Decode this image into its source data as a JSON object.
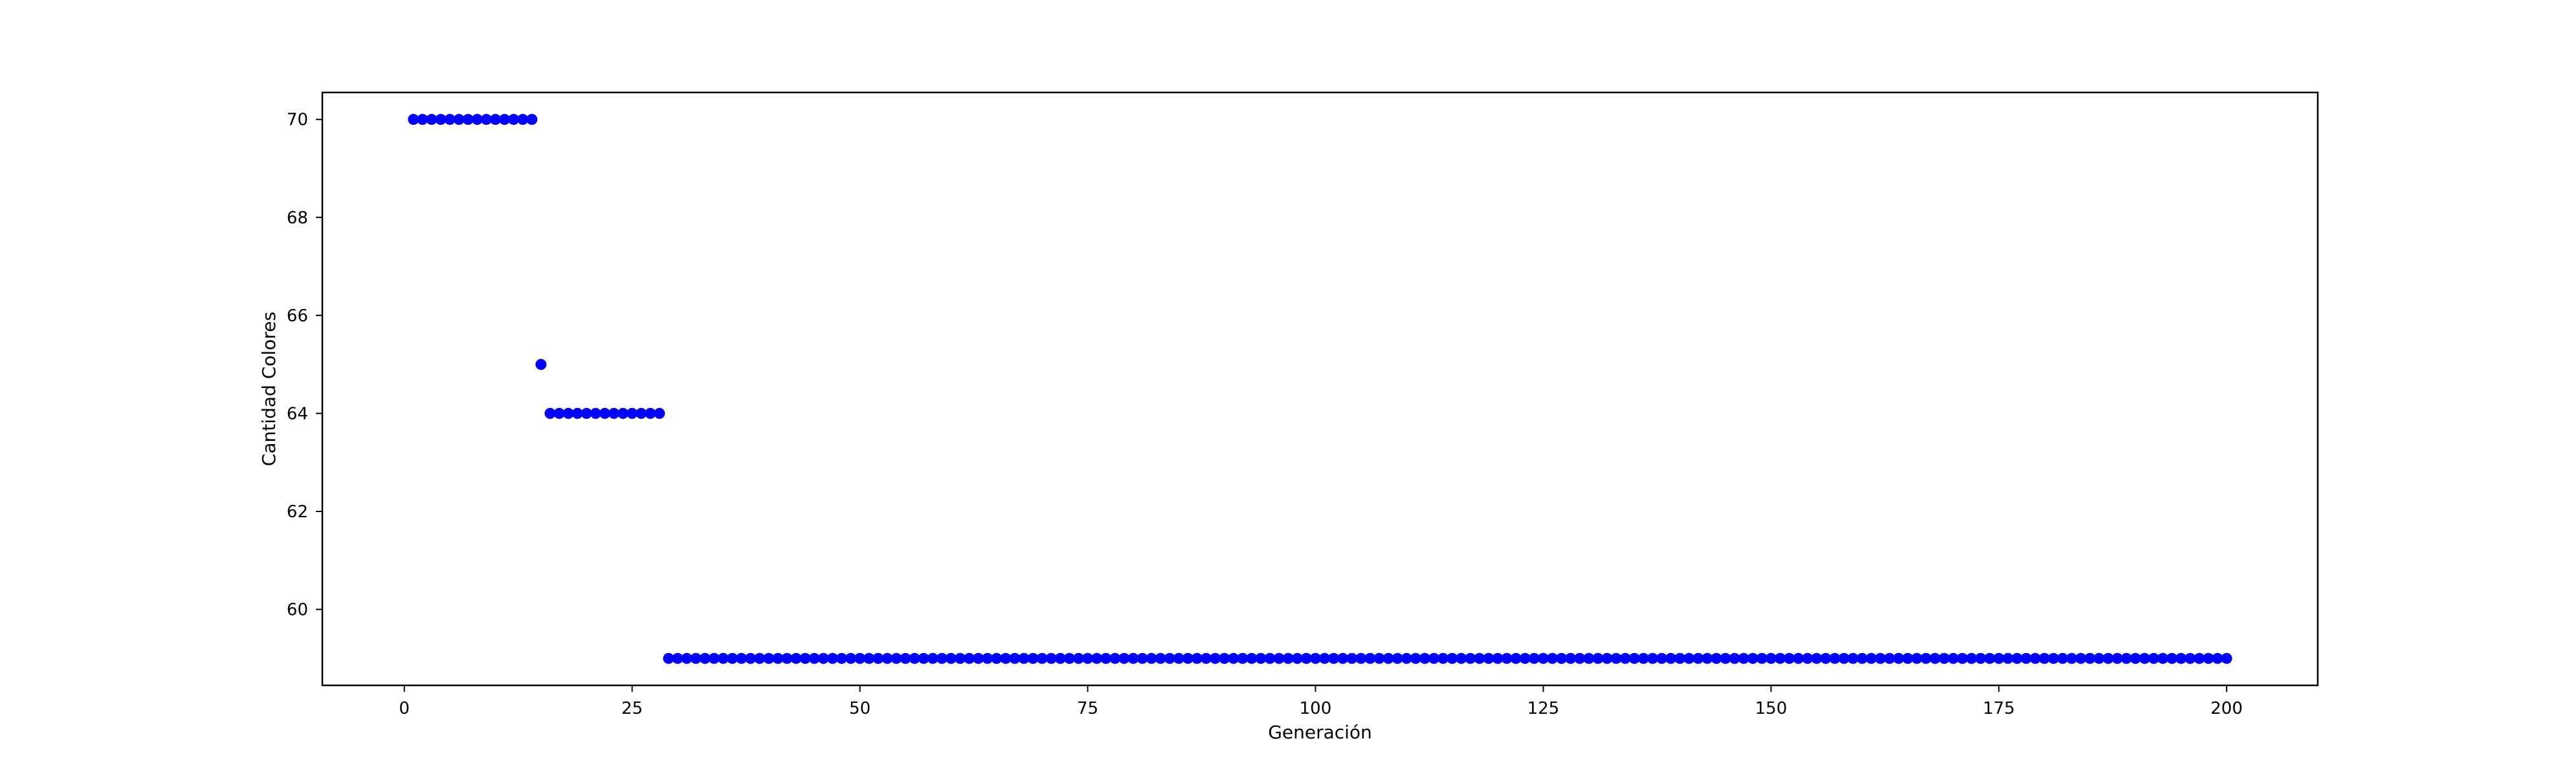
{
  "chart_data": {
    "type": "scatter",
    "title": "",
    "xlabel": "Generación",
    "ylabel": "Cantidad Colores",
    "xlim": [
      -9,
      210
    ],
    "ylim": [
      58.45,
      70.55
    ],
    "xticks": [
      0,
      25,
      50,
      75,
      100,
      125,
      150,
      175,
      200
    ],
    "yticks": [
      60,
      62,
      64,
      66,
      68,
      70
    ],
    "grid": false,
    "legend": "none",
    "marker_color": "#0000ff",
    "series": [
      {
        "segments": [
          {
            "x_start": 1,
            "x_end": 14,
            "y": 70
          },
          {
            "x_start": 15,
            "x_end": 15,
            "y": 65
          },
          {
            "x_start": 16,
            "x_end": 28,
            "y": 64
          },
          {
            "x_start": 29,
            "x_end": 200,
            "y": 59
          }
        ]
      }
    ]
  }
}
